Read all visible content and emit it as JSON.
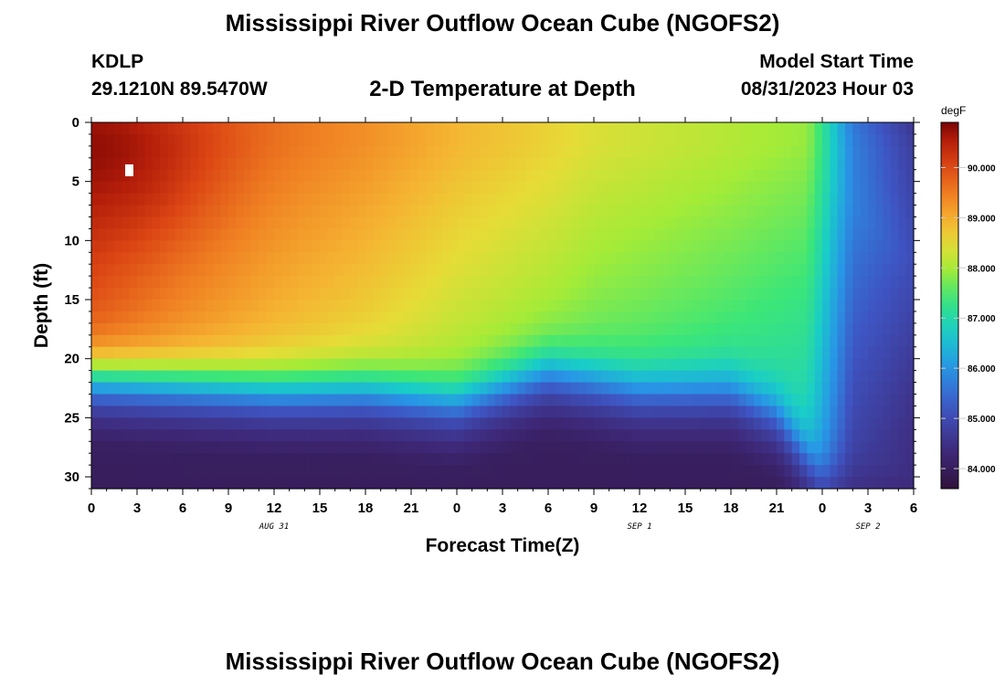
{
  "titles": {
    "top": "Mississippi River Outflow Ocean Cube (NGOFS2)",
    "bottom": "Mississippi River Outflow Ocean Cube (NGOFS2)"
  },
  "station": {
    "id": "KDLP",
    "coords": "29.1210N  89.5470W"
  },
  "subtitle": "2-D Temperature at Depth",
  "model_start": {
    "label": "Model Start Time",
    "value": "08/31/2023 Hour 03"
  },
  "chart_data": {
    "type": "heatmap",
    "title": "2-D Temperature at Depth",
    "xlabel": "Forecast Time(Z)",
    "ylabel": "Depth (ft)",
    "x_hours_range": [
      0,
      54
    ],
    "x_tick_labels": [
      "0",
      "3",
      "6",
      "9",
      "12",
      "15",
      "18",
      "21",
      "0",
      "3",
      "6",
      "9",
      "12",
      "15",
      "18",
      "21",
      "0",
      "3",
      "6"
    ],
    "date_labels": [
      {
        "text": "AUG 31",
        "hour": 12
      },
      {
        "text": "SEP 1",
        "hour": 36
      },
      {
        "text": "SEP 2",
        "hour": 51
      }
    ],
    "y_range": [
      0,
      31
    ],
    "y_ticks": [
      0,
      5,
      10,
      15,
      20,
      25,
      30
    ],
    "colorbar": {
      "unit": "degF",
      "range": [
        83.6,
        90.9
      ],
      "ticks": [
        "84.000",
        "85.000",
        "86.000",
        "87.000",
        "88.000",
        "89.000",
        "90.000"
      ]
    },
    "surface_temp_by_hour": [
      [
        0,
        90.5
      ],
      [
        6,
        90.0
      ],
      [
        12,
        89.6
      ],
      [
        18,
        89.3
      ],
      [
        24,
        88.9
      ],
      [
        30,
        88.6
      ],
      [
        33,
        88.4
      ],
      [
        42,
        88.1
      ],
      [
        47,
        87.9
      ],
      [
        48,
        87.3
      ],
      [
        50,
        86.0
      ],
      [
        54,
        85.5
      ]
    ],
    "thermocline_depth_ft_by_hour": [
      [
        0,
        21.5
      ],
      [
        6,
        22.0
      ],
      [
        12,
        22.5
      ],
      [
        18,
        22.5
      ],
      [
        24,
        23.5
      ],
      [
        30,
        21.0
      ],
      [
        36,
        22.5
      ],
      [
        42,
        22.5
      ],
      [
        45,
        24.5
      ],
      [
        48,
        30.0
      ],
      [
        51,
        29.0
      ],
      [
        54,
        29.0
      ]
    ],
    "bottom_temp_degF": 84.0
  }
}
